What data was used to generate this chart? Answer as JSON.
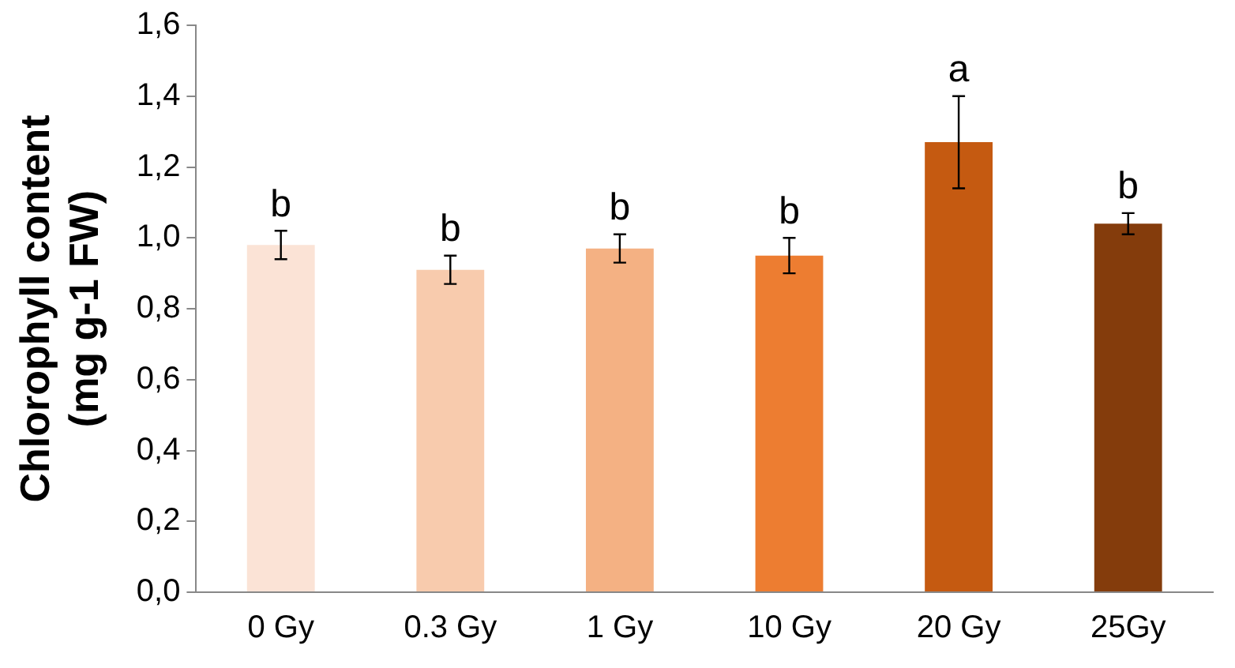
{
  "chart_data": {
    "type": "bar",
    "ylabel": "Chlorophyll content\n(mg g-1 FW)",
    "categories": [
      "0 Gy",
      "0.3 Gy",
      "1 Gy",
      "10 Gy",
      "20 Gy",
      "25Gy"
    ],
    "values": [
      0.98,
      0.91,
      0.97,
      0.95,
      1.27,
      1.04
    ],
    "colors": [
      "#fbe3d6",
      "#f8cbad",
      "#f4b183",
      "#ed7d31",
      "#c55a11",
      "#843c0c"
    ],
    "errors": [
      0.04,
      0.04,
      0.04,
      0.05,
      0.13,
      0.03
    ],
    "ylim": [
      0,
      1.6
    ],
    "yticks": [
      {
        "value": 0,
        "label": "0,0"
      },
      {
        "value": 0.2,
        "label": "0,2"
      },
      {
        "value": 0.4,
        "label": "0,4"
      },
      {
        "value": 0.6,
        "label": "0,6"
      },
      {
        "value": 0.8,
        "label": "0,8"
      },
      {
        "value": 1.0,
        "label": "1,0"
      },
      {
        "value": 1.2,
        "label": "1,2"
      },
      {
        "value": 1.4,
        "label": "1,4"
      },
      {
        "value": 1.6,
        "label": "1,6"
      }
    ],
    "grid": false,
    "legend": false,
    "annotations": [
      {
        "text": "b",
        "x": "0 Gy",
        "y": 1.02
      },
      {
        "text": "b",
        "x": "0.3 Gy",
        "y": 0.95
      },
      {
        "text": "b",
        "x": "1 Gy",
        "y": 1.01
      },
      {
        "text": "b",
        "x": "10 Gy",
        "y": 1.0
      },
      {
        "text": "a",
        "x": "20 Gy",
        "y": 1.4
      },
      {
        "text": "b",
        "x": "25Gy",
        "y": 1.07
      }
    ]
  }
}
